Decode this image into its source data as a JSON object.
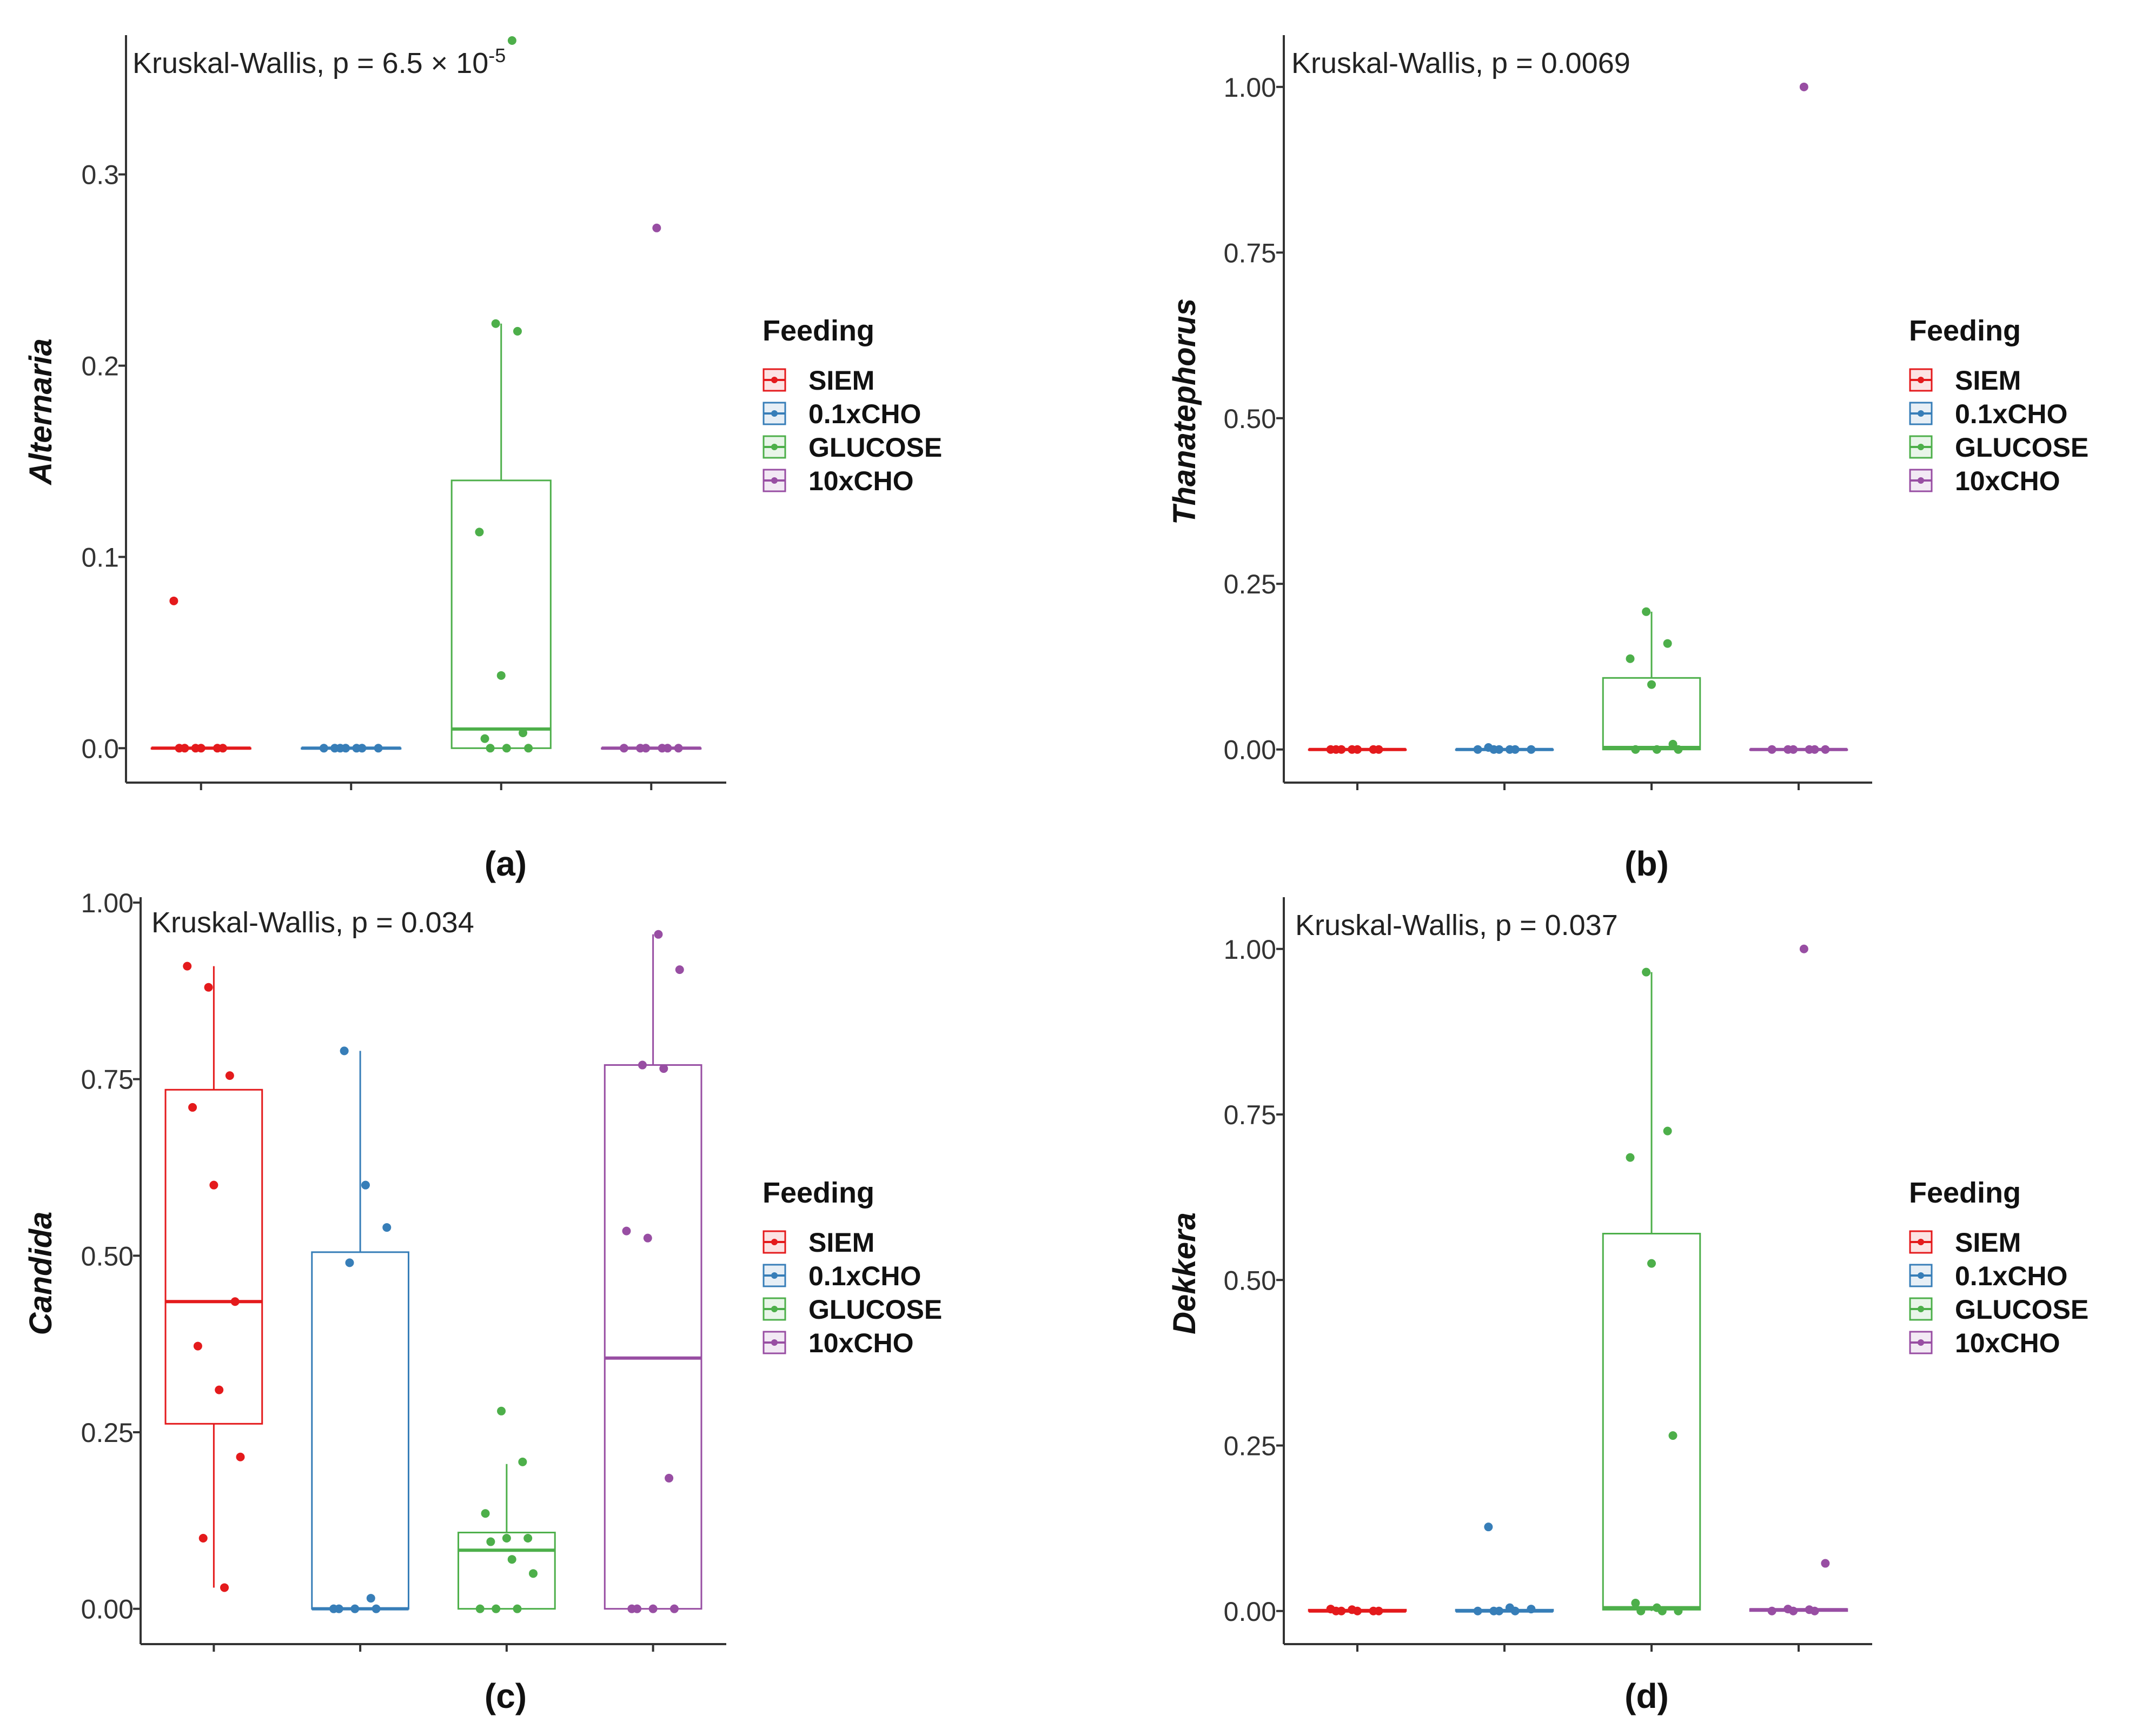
{
  "figure": {
    "legend_title": "Feeding",
    "groups": [
      "SIEM",
      "0.1xCHO",
      "GLUCOSE",
      "10xCHO"
    ],
    "colors": {
      "SIEM": "#e41a1c",
      "0.1xCHO": "#377eb8",
      "GLUCOSE": "#4daf4a",
      "10xCHO": "#984ea3"
    }
  },
  "chart_data": [
    {
      "type": "box",
      "panel": "(a)",
      "ylabel": "Alternaria",
      "annotation": {
        "text": "Kruskal-Wallis, p = 6.5 × 10",
        "sup": "-5"
      },
      "ylim": [
        -0.018,
        0.37
      ],
      "yticks": [
        0.0,
        0.1,
        0.2,
        0.3
      ],
      "tick_labels": [
        "0.0",
        "0.1",
        "0.2",
        "0.3"
      ],
      "series": [
        {
          "name": "SIEM",
          "box": {
            "q1": 0.0,
            "median": 0.0,
            "q3": 0.0,
            "whisker_low": 0.0,
            "whisker_high": 0.0
          },
          "points": [
            0.077,
            0.0,
            0.0,
            0.0,
            0.0,
            0.0,
            0.0
          ]
        },
        {
          "name": "0.1xCHO",
          "box": {
            "q1": 0.0,
            "median": 0.0,
            "q3": 0.0,
            "whisker_low": 0.0,
            "whisker_high": 0.0
          },
          "points": [
            0.0,
            0.0,
            0.0,
            0.0,
            0.0,
            0.0,
            0.0
          ]
        },
        {
          "name": "GLUCOSE",
          "box": {
            "q1": 0.0,
            "median": 0.01,
            "q3": 0.14,
            "whisker_low": 0.0,
            "whisker_high": 0.222
          },
          "points": [
            0.222,
            0.218,
            0.113,
            0.038,
            0.008,
            0.005,
            0.0,
            0.0,
            0.0,
            0.37,
            0.395
          ]
        },
        {
          "name": "10xCHO",
          "box": {
            "q1": 0.0,
            "median": 0.0,
            "q3": 0.0,
            "whisker_low": 0.0,
            "whisker_high": 0.0
          },
          "points": [
            0.272,
            0.0,
            0.0,
            0.0,
            0.0,
            0.0,
            0.0
          ]
        }
      ]
    },
    {
      "type": "box",
      "panel": "(b)",
      "ylabel": "Thanatephorus",
      "annotation": {
        "text": "Kruskal-Wallis, p = 0.0069",
        "sup": ""
      },
      "ylim": [
        -0.05,
        1.07
      ],
      "yticks": [
        0.0,
        0.25,
        0.5,
        0.75,
        1.0
      ],
      "tick_labels": [
        "0.00",
        "0.25",
        "0.50",
        "0.75",
        "1.00"
      ],
      "series": [
        {
          "name": "SIEM",
          "box": {
            "q1": 0.0,
            "median": 0.0,
            "q3": 0.0,
            "whisker_low": 0.0,
            "whisker_high": 0.0
          },
          "points": [
            0.0,
            0.0,
            0.0,
            0.0,
            0.0,
            0.0,
            0.0
          ]
        },
        {
          "name": "0.1xCHO",
          "box": {
            "q1": 0.0,
            "median": 0.0,
            "q3": 0.0,
            "whisker_low": 0.0,
            "whisker_high": 0.0
          },
          "points": [
            0.003,
            0.0,
            0.0,
            0.0,
            0.0,
            0.0,
            0.0
          ]
        },
        {
          "name": "GLUCOSE",
          "box": {
            "q1": 0.0,
            "median": 0.003,
            "q3": 0.108,
            "whisker_low": 0.0,
            "whisker_high": 0.208
          },
          "points": [
            0.208,
            0.16,
            0.137,
            0.098,
            0.008,
            0.0,
            0.0,
            0.0
          ]
        },
        {
          "name": "10xCHO",
          "box": {
            "q1": 0.0,
            "median": 0.0,
            "q3": 0.0,
            "whisker_low": 0.0,
            "whisker_high": 0.0
          },
          "points": [
            1.0,
            0.0,
            0.0,
            0.0,
            0.0,
            0.0,
            0.0
          ]
        }
      ]
    },
    {
      "type": "box",
      "panel": "(c)",
      "ylabel": "Candida",
      "annotation": {
        "text": "Kruskal-Wallis, p = 0.034",
        "sup": ""
      },
      "ylim": [
        -0.05,
        1.0
      ],
      "yticks": [
        0.0,
        0.25,
        0.5,
        0.75,
        1.0
      ],
      "tick_labels": [
        "0.00",
        "0.25",
        "0.50",
        "0.75",
        "1.00"
      ],
      "series": [
        {
          "name": "SIEM",
          "box": {
            "q1": 0.262,
            "median": 0.435,
            "q3": 0.735,
            "whisker_low": 0.03,
            "whisker_high": 0.91
          },
          "points": [
            0.91,
            0.88,
            0.755,
            0.71,
            0.6,
            0.435,
            0.372,
            0.31,
            0.215,
            0.1,
            0.03
          ]
        },
        {
          "name": "0.1xCHO",
          "box": {
            "q1": 0.0,
            "median": 0.0,
            "q3": 0.505,
            "whisker_low": 0.0,
            "whisker_high": 0.79
          },
          "points": [
            0.79,
            0.6,
            0.54,
            0.49,
            0.015,
            0.0,
            0.0,
            0.0,
            0.0
          ]
        },
        {
          "name": "GLUCOSE",
          "box": {
            "q1": 0.0,
            "median": 0.083,
            "q3": 0.108,
            "whisker_low": 0.0,
            "whisker_high": 0.205
          },
          "points": [
            0.28,
            0.208,
            0.135,
            0.1,
            0.1,
            0.095,
            0.07,
            0.05,
            0.0,
            0.0,
            0.0
          ]
        },
        {
          "name": "10xCHO",
          "box": {
            "q1": 0.0,
            "median": 0.355,
            "q3": 0.77,
            "whisker_low": 0.0,
            "whisker_high": 0.955
          },
          "points": [
            0.955,
            0.905,
            0.77,
            0.765,
            0.535,
            0.525,
            0.185,
            0.0,
            0.0,
            0.0,
            0.0
          ]
        }
      ]
    },
    {
      "type": "box",
      "panel": "(d)",
      "ylabel": "Dekkera",
      "annotation": {
        "text": "Kruskal-Wallis, p = 0.037",
        "sup": ""
      },
      "ylim": [
        -0.05,
        1.07
      ],
      "yticks": [
        0.0,
        0.25,
        0.5,
        0.75,
        1.0
      ],
      "tick_labels": [
        "0.00",
        "0.25",
        "0.50",
        "0.75",
        "1.00"
      ],
      "series": [
        {
          "name": "SIEM",
          "box": {
            "q1": 0.0,
            "median": 0.0,
            "q3": 0.002,
            "whisker_low": 0.0,
            "whisker_high": 0.002
          },
          "points": [
            0.003,
            0.002,
            0.0,
            0.0,
            0.0,
            0.0,
            0.0
          ]
        },
        {
          "name": "0.1xCHO",
          "box": {
            "q1": 0.0,
            "median": 0.0,
            "q3": 0.002,
            "whisker_low": 0.0,
            "whisker_high": 0.002
          },
          "points": [
            0.127,
            0.005,
            0.003,
            0.0,
            0.0,
            0.0,
            0.0
          ]
        },
        {
          "name": "GLUCOSE",
          "box": {
            "q1": 0.002,
            "median": 0.005,
            "q3": 0.57,
            "whisker_low": 0.0,
            "whisker_high": 0.965
          },
          "points": [
            0.965,
            0.725,
            0.685,
            0.525,
            0.265,
            0.012,
            0.005,
            0.0,
            0.0,
            0.0
          ]
        },
        {
          "name": "10xCHO",
          "box": {
            "q1": 0.0,
            "median": 0.002,
            "q3": 0.003,
            "whisker_low": 0.0,
            "whisker_high": 0.003
          },
          "points": [
            1.0,
            0.072,
            0.003,
            0.002,
            0.0,
            0.0,
            0.0
          ]
        }
      ]
    }
  ]
}
